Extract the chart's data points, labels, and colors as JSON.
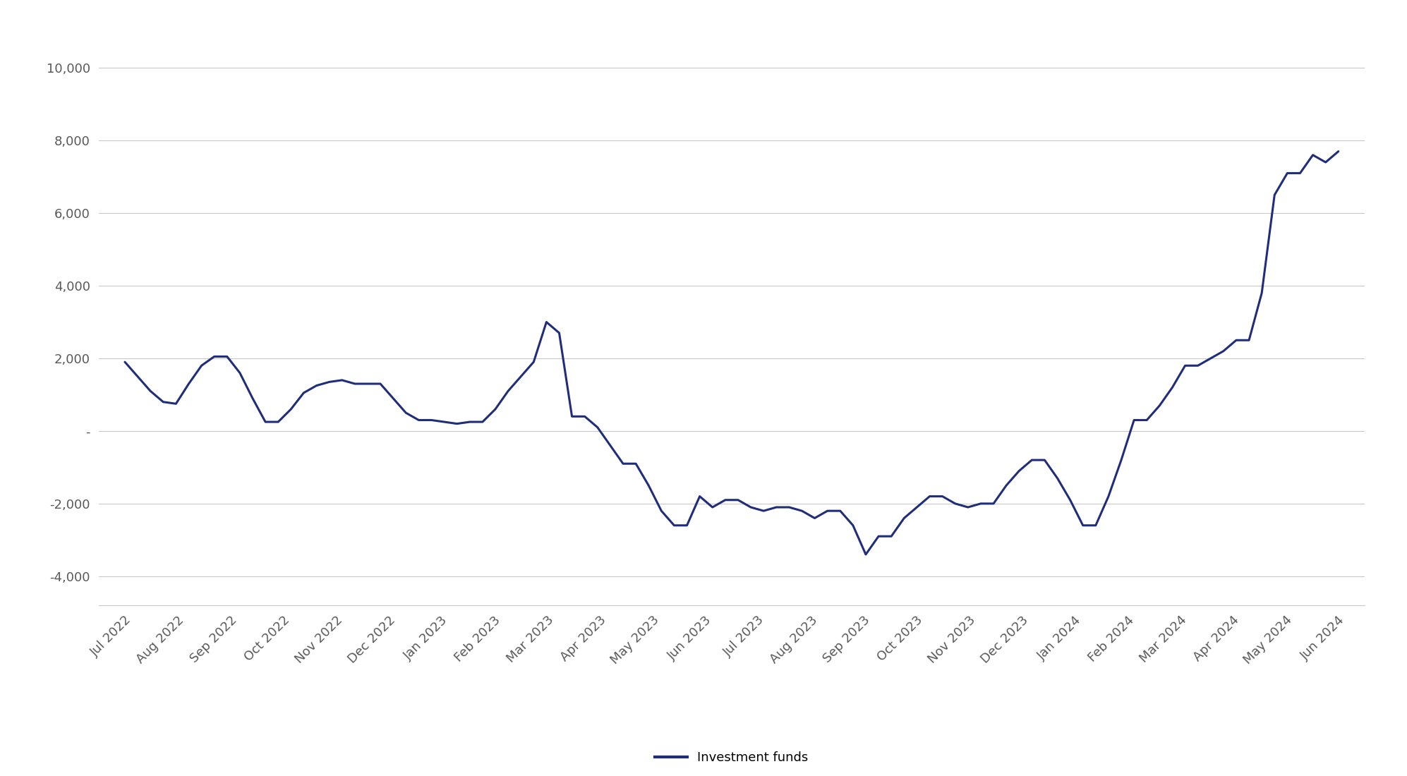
{
  "labels": [
    "Jul 2022",
    "Aug 2022",
    "Sep 2022",
    "Oct 2022",
    "Nov 2022",
    "Dec 2022",
    "Jan 2023",
    "Feb 2023",
    "Mar 2023",
    "Apr 2023",
    "May 2023",
    "Jun 2023",
    "Jul 2023",
    "Aug 2023",
    "Sep 2023",
    "Oct 2023",
    "Nov 2023",
    "Dec 2023",
    "Jan 2024",
    "Feb 2024",
    "Mar 2024",
    "Apr 2024",
    "May 2024",
    "Jun 2024"
  ],
  "weekly_data": [
    1900,
    1500,
    1100,
    800,
    750,
    1300,
    1800,
    2050,
    2050,
    1600,
    900,
    250,
    250,
    600,
    1050,
    1250,
    1350,
    1400,
    1300,
    1300,
    1300,
    900,
    500,
    300,
    300,
    250,
    200,
    250,
    250,
    600,
    1100,
    1500,
    1900,
    3000,
    2700,
    400,
    400,
    100,
    -400,
    -900,
    -900,
    -1500,
    -2200,
    -2600,
    -2600,
    -1800,
    -2100,
    -1900,
    -1900,
    -2100,
    -2200,
    -2100,
    -2100,
    -2200,
    -2400,
    -2200,
    -2200,
    -2600,
    -3400,
    -2900,
    -2900,
    -2400,
    -2100,
    -1800,
    -1800,
    -2000,
    -2100,
    -2000,
    -2000,
    -1500,
    -1100,
    -800,
    -800,
    -1300,
    -1900,
    -2600,
    -2600,
    -1800,
    -800,
    300,
    300,
    700,
    1200,
    1800,
    1800,
    2000,
    2200,
    2500,
    2500,
    3800,
    6500,
    7100,
    7100,
    7600,
    7400,
    7700
  ],
  "line_color": "#1f2d7b",
  "line_width": 2.2,
  "ylim": [
    -4800,
    10800
  ],
  "yticks": [
    -4000,
    -2000,
    0,
    2000,
    4000,
    6000,
    8000,
    10000
  ],
  "ytick_labels": [
    "-4,000",
    "-2,000",
    "-",
    "2,000",
    "4,000",
    "6,000",
    "8,000",
    "10,000"
  ],
  "background_color": "#ffffff",
  "grid_color": "#c8c8c8",
  "legend_label": "Investment funds",
  "tick_color": "#595959",
  "tick_fontsize": 13,
  "legend_fontsize": 13
}
